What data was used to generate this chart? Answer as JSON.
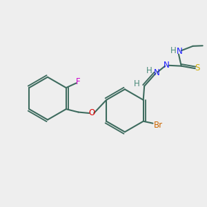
{
  "background_color": "#eeeeee",
  "bond_color": "#3d6b5e",
  "bond_width": 1.5,
  "atoms": {
    "F": {
      "color": "#cc00cc"
    },
    "O": {
      "color": "#dd0000"
    },
    "N": {
      "color": "#1a1aff"
    },
    "S": {
      "color": "#ccaa00"
    },
    "Br": {
      "color": "#cc6600"
    },
    "H": {
      "color": "#4a8a7a"
    },
    "C": {
      "color": "#3d6b5e"
    }
  },
  "fontsize": 8.5
}
